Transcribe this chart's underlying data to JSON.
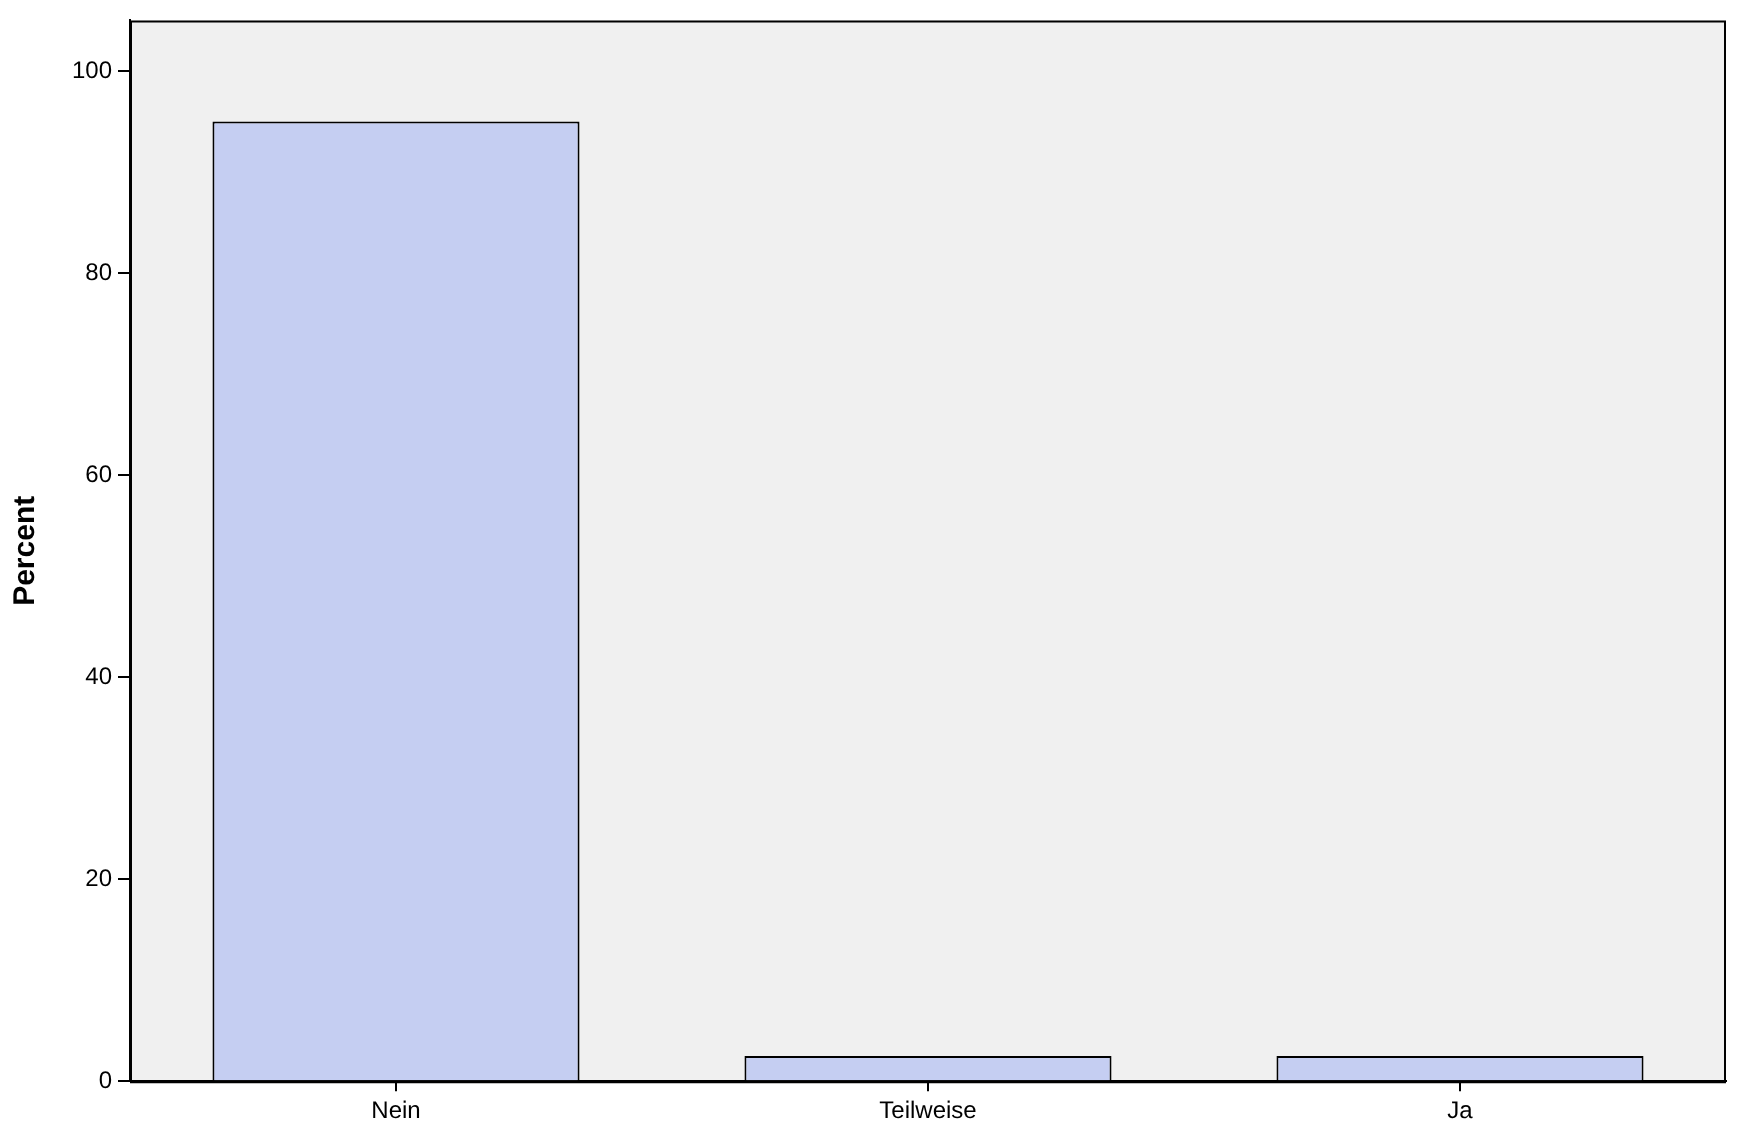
{
  "chart_data": {
    "type": "bar",
    "ylabel": "Percent",
    "categories": [
      "Nein",
      "Teilweise",
      "Ja"
    ],
    "values": [
      95,
      2.5,
      2.5
    ],
    "color": "#c5cef2",
    "ylim": [
      0,
      105
    ],
    "yticks": [
      0,
      20,
      40,
      60,
      80,
      100
    ],
    "grid": false,
    "legend": false
  }
}
